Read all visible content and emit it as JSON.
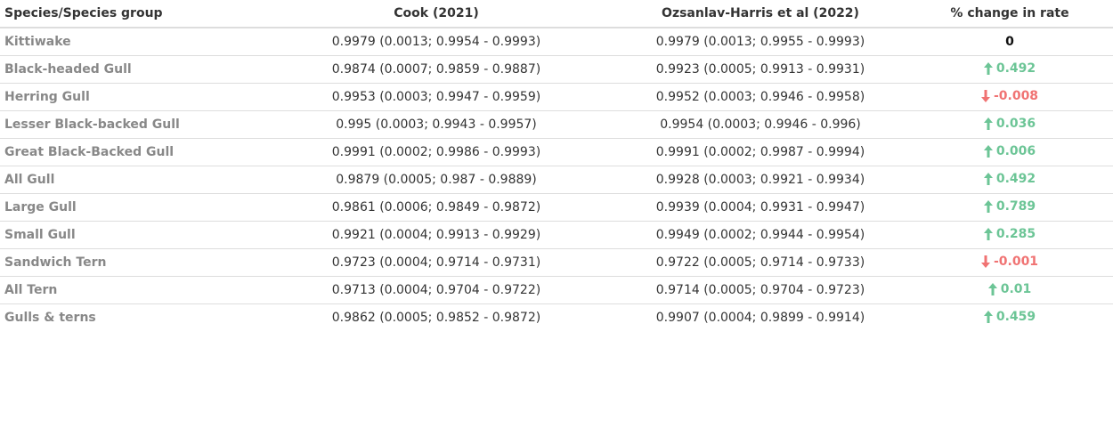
{
  "headers": {
    "species": "Species/Species group",
    "cook": "Cook (2021)",
    "oh": "Ozsanlav-Harris et al (2022)",
    "change": "% change in rate"
  },
  "colors": {
    "up": "#6cc596",
    "down": "#f07373",
    "neutral": "#111111"
  },
  "rows": [
    {
      "species": "Kittiwake",
      "cook": "0.9979 (0.0013; 0.9954 - 0.9993)",
      "oh": "0.9979 (0.0013; 0.9955 - 0.9993)",
      "change": "0",
      "dir": "none"
    },
    {
      "species": "Black-headed Gull",
      "cook": "0.9874 (0.0007; 0.9859 - 0.9887)",
      "oh": "0.9923 (0.0005; 0.9913 - 0.9931)",
      "change": "0.492",
      "dir": "up"
    },
    {
      "species": "Herring Gull",
      "cook": "0.9953 (0.0003; 0.9947 - 0.9959)",
      "oh": "0.9952 (0.0003; 0.9946 - 0.9958)",
      "change": "-0.008",
      "dir": "down"
    },
    {
      "species": "Lesser Black-backed Gull",
      "cook": "0.995 (0.0003; 0.9943 - 0.9957)",
      "oh": "0.9954 (0.0003; 0.9946 - 0.996)",
      "change": "0.036",
      "dir": "up"
    },
    {
      "species": "Great Black-Backed Gull",
      "cook": "0.9991 (0.0002; 0.9986 - 0.9993)",
      "oh": "0.9991 (0.0002; 0.9987 - 0.9994)",
      "change": "0.006",
      "dir": "up"
    },
    {
      "species": "All Gull",
      "cook": "0.9879 (0.0005; 0.987 - 0.9889)",
      "oh": "0.9928 (0.0003; 0.9921 - 0.9934)",
      "change": "0.492",
      "dir": "up"
    },
    {
      "species": "Large Gull",
      "cook": "0.9861 (0.0006; 0.9849 - 0.9872)",
      "oh": "0.9939 (0.0004; 0.9931 - 0.9947)",
      "change": "0.789",
      "dir": "up"
    },
    {
      "species": "Small Gull",
      "cook": "0.9921 (0.0004; 0.9913 - 0.9929)",
      "oh": "0.9949 (0.0002; 0.9944 - 0.9954)",
      "change": "0.285",
      "dir": "up"
    },
    {
      "species": "Sandwich Tern",
      "cook": "0.9723 (0.0004; 0.9714 - 0.9731)",
      "oh": "0.9722 (0.0005; 0.9714 - 0.9733)",
      "change": "-0.001",
      "dir": "down"
    },
    {
      "species": "All Tern",
      "cook": "0.9713 (0.0004; 0.9704 - 0.9722)",
      "oh": "0.9714 (0.0005; 0.9704 - 0.9723)",
      "change": "0.01",
      "dir": "up"
    },
    {
      "species": "Gulls & terns",
      "cook": "0.9862 (0.0005; 0.9852 - 0.9872)",
      "oh": "0.9907 (0.0004; 0.9899 - 0.9914)",
      "change": "0.459",
      "dir": "up"
    }
  ]
}
